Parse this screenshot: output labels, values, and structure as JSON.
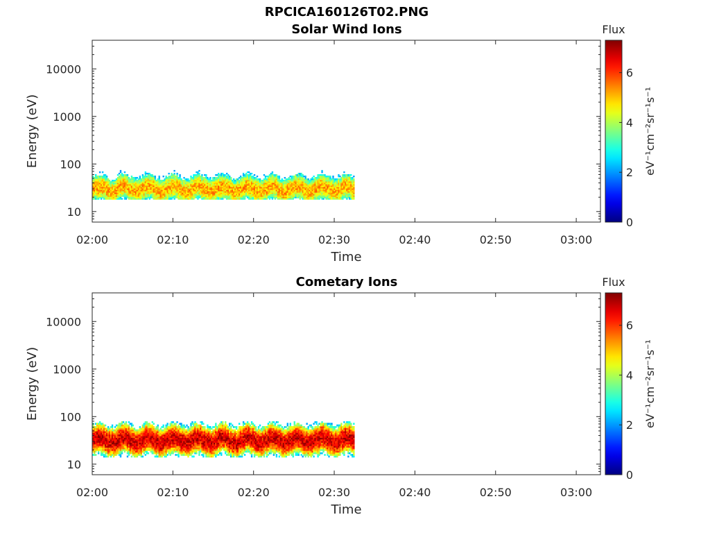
{
  "figure": {
    "filename": "RPCICA160126T02.PNG"
  },
  "chart_data": [
    {
      "type": "heatmap",
      "title": "Solar Wind Ions",
      "xlabel": "Time",
      "ylabel": "Energy (eV)",
      "x_ticks": [
        "02:00",
        "02:10",
        "02:20",
        "02:30",
        "02:40",
        "02:50",
        "03:00"
      ],
      "xlim": [
        "02:00",
        "03:03"
      ],
      "y_scale": "log",
      "y_ticks": [
        10,
        100,
        1000,
        10000
      ],
      "ylim": [
        6,
        40000
      ],
      "colorbar": {
        "label": "Flux",
        "unit": "eV⁻¹cm⁻²sr⁻¹s⁻¹",
        "ticks": [
          0,
          2,
          4,
          6
        ],
        "range": [
          0,
          7.3
        ]
      },
      "data_time_range": [
        "02:00",
        "02:32.5"
      ],
      "core_energy_eV": 30,
      "energy_band_eV": [
        18,
        80
      ],
      "core_flux": 5.2,
      "colormap": "jet"
    },
    {
      "type": "heatmap",
      "title": "Cometary Ions",
      "xlabel": "Time",
      "ylabel": "Energy (eV)",
      "x_ticks": [
        "02:00",
        "02:10",
        "02:20",
        "02:30",
        "02:40",
        "02:50",
        "03:00"
      ],
      "xlim": [
        "02:00",
        "03:03"
      ],
      "y_scale": "log",
      "y_ticks": [
        10,
        100,
        1000,
        10000
      ],
      "ylim": [
        6,
        40000
      ],
      "colorbar": {
        "label": "Flux",
        "unit": "eV⁻¹cm⁻²sr⁻¹s⁻¹",
        "ticks": [
          0,
          2,
          4,
          6
        ],
        "range": [
          0,
          7.3
        ]
      },
      "data_time_range": [
        "02:00",
        "02:32.5"
      ],
      "core_energy_eV": 32,
      "energy_band_eV": [
        14,
        80
      ],
      "core_flux": 6.7,
      "colormap": "jet"
    }
  ]
}
